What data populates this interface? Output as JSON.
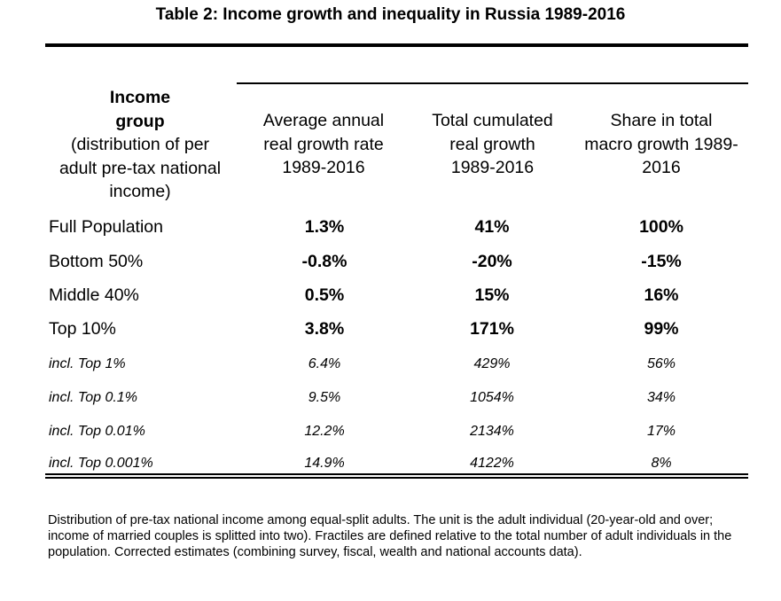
{
  "title": "Table 2: Income growth and inequality in Russia 1989-2016",
  "header": {
    "group_line1": "Income",
    "group_line2": "group",
    "group_line3": "(distribution of per",
    "group_line4": "adult pre-tax national",
    "group_line5": "income)",
    "col1_line1": "Average annual",
    "col1_line2": "real growth rate",
    "col1_line3": "1989-2016",
    "col2_line1": "Total cumulated",
    "col2_line2": "real growth",
    "col2_line3": "1989-2016",
    "col3_line1": "Share in total",
    "col3_line2": "macro growth 1989-",
    "col3_line3": "2016"
  },
  "rows": [
    {
      "label": "Full Population",
      "avg": "1.3%",
      "total": "41%",
      "share": "100%"
    },
    {
      "label": "Bottom 50%",
      "avg": "-0.8%",
      "total": "-20%",
      "share": "-15%"
    },
    {
      "label": "Middle 40%",
      "avg": "0.5%",
      "total": "15%",
      "share": "16%"
    },
    {
      "label": "Top 10%",
      "avg": "3.8%",
      "total": "171%",
      "share": "99%"
    },
    {
      "label": "incl. Top 1%",
      "avg": "6.4%",
      "total": "429%",
      "share": "56%"
    },
    {
      "label": "incl. Top 0.1%",
      "avg": "9.5%",
      "total": "1054%",
      "share": "34%"
    },
    {
      "label": "incl. Top 0.01%",
      "avg": "12.2%",
      "total": "2134%",
      "share": "17%"
    },
    {
      "label": "incl. Top 0.001%",
      "avg": "14.9%",
      "total": "4122%",
      "share": "8%"
    }
  ],
  "note": "Distribution of pre-tax national income among equal-split adults. The unit is the adult individual (20-year-old and over; income of married couples is splitted into two). Fractiles are defined relative to the total number of adult individuals in the population. Corrected estimates (combining survey, fiscal, wealth and national accounts data)."
}
